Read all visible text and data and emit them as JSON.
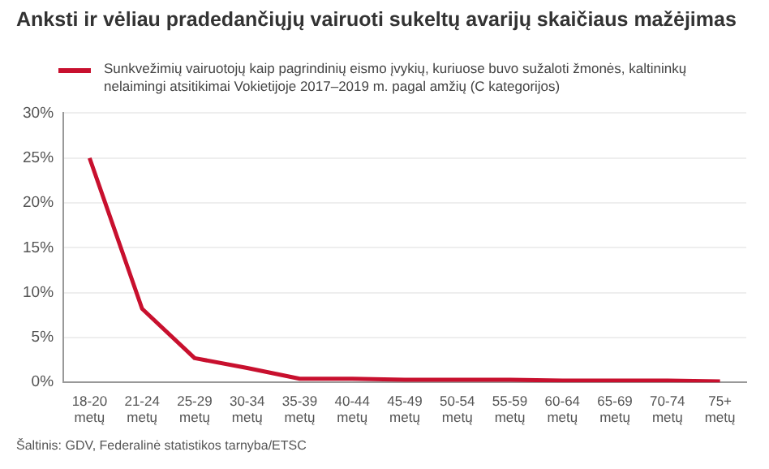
{
  "chart_data": {
    "type": "line",
    "title": "Anksti ir vėliau pradedančiųjų vairuoti sukeltų avarijų skaičiaus mažėjimas",
    "categories": [
      "18-20 metų",
      "21-24 metų",
      "25-29 metų",
      "30-34 metų",
      "35-39 metų",
      "40-44 metų",
      "45-49 metų",
      "50-54 metų",
      "55-59 metų",
      "60-64 metų",
      "65-69 metų",
      "70-74 metų",
      "75+ metų"
    ],
    "series": [
      {
        "name": "Sunkvežimių vairuotojų kaip pagrindinių eismo įvykių, kuriuose buvo sužaloti žmonės, kaltininkų nelaimingi atsitikimai Vokietijoje 2017–2019 m. pagal amžių (C kategorijos)",
        "color": "#c8102e",
        "values": [
          25,
          8.2,
          2.7,
          1.6,
          0.4,
          0.4,
          0.3,
          0.3,
          0.3,
          0.2,
          0.2,
          0.2,
          0.1
        ]
      }
    ],
    "ylim": [
      0,
      30
    ],
    "yticks": [
      {
        "value": 0,
        "label": "0%"
      },
      {
        "value": 5,
        "label": "5%"
      },
      {
        "value": 10,
        "label": "10%"
      },
      {
        "value": 15,
        "label": "15%"
      },
      {
        "value": 20,
        "label": "20%"
      },
      {
        "value": 25,
        "label": "25%"
      },
      {
        "value": 30,
        "label": "30%"
      }
    ],
    "grid": "y",
    "legend": "top",
    "marker": "none",
    "line_style": "solid",
    "annotations": [
      "Šaltinis: GDV, Federalinė statistikos tarnyba/ETSC"
    ]
  }
}
